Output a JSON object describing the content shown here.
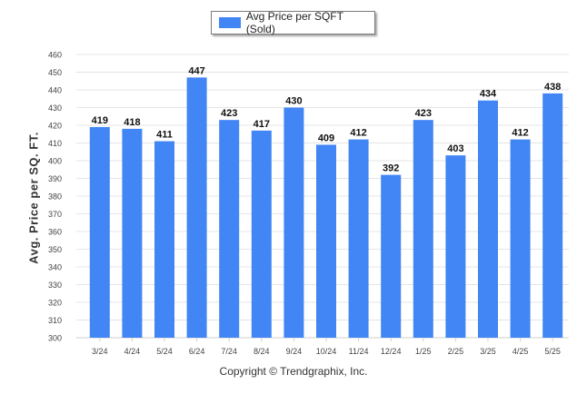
{
  "legend": {
    "label": "Avg Price per SQFT (Sold)"
  },
  "copyright": "Copyright © Trendgraphix, Inc.",
  "chart_data": {
    "type": "bar",
    "title": "",
    "xlabel": "",
    "ylabel": "Avg. Price per SQ. FT.",
    "ylim": [
      300,
      460
    ],
    "ytick_step": 10,
    "grid": true,
    "legend_position": "top-center",
    "bar_color": "#4285f4",
    "categories": [
      "3/24",
      "4/24",
      "5/24",
      "6/24",
      "7/24",
      "8/24",
      "9/24",
      "10/24",
      "11/24",
      "12/24",
      "1/25",
      "2/25",
      "3/25",
      "4/25",
      "5/25"
    ],
    "series": [
      {
        "name": "Avg Price per SQFT (Sold)",
        "values": [
          419,
          418,
          411,
          447,
          423,
          417,
          430,
          409,
          412,
          392,
          423,
          403,
          434,
          412,
          438
        ]
      }
    ]
  }
}
